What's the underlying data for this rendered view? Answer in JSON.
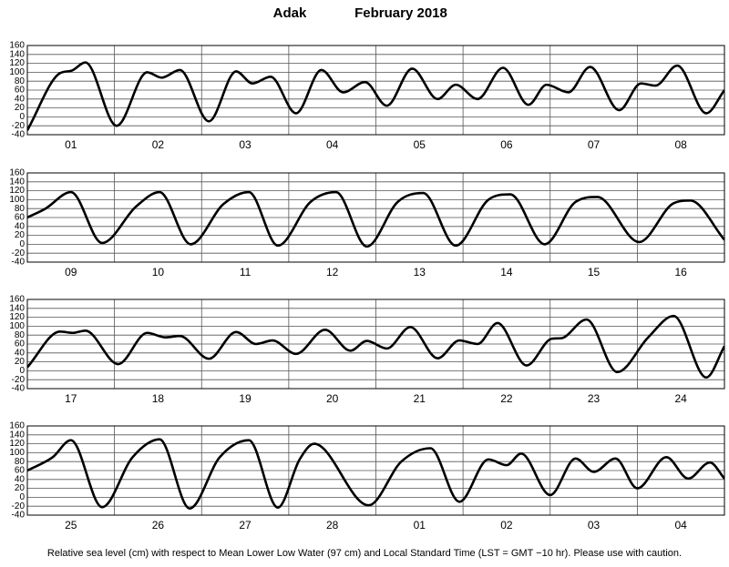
{
  "header": {
    "station": "Adak",
    "date": "February 2018"
  },
  "footnote": "Relative sea level (cm) with respect to Mean Lower Low Water (97 cm) and Local Standard Time (LST = GMT −10 hr). Please use with caution.",
  "chart_data": [
    {
      "type": "line",
      "categories": [
        "01",
        "02",
        "03",
        "04",
        "05",
        "06",
        "07",
        "08"
      ],
      "xlim": [
        0,
        192
      ],
      "ylim": [
        -40,
        160
      ],
      "yticks": [
        -40,
        -20,
        0,
        20,
        40,
        60,
        80,
        100,
        120,
        140,
        160
      ],
      "grid": true,
      "color": "#000000",
      "x": [
        0,
        9,
        12,
        16,
        24.6,
        33,
        37,
        42,
        50,
        57.5,
        62,
        67,
        74,
        81,
        87,
        93,
        99,
        106,
        113,
        118,
        124,
        131,
        138,
        143,
        149,
        155,
        163,
        169,
        173,
        179,
        187,
        192
      ],
      "values": [
        -30,
        98,
        103,
        122,
        -20,
        100,
        88,
        105,
        -10,
        102,
        75,
        90,
        8,
        105,
        55,
        78,
        25,
        108,
        40,
        72,
        40,
        110,
        27,
        72,
        55,
        112,
        15,
        75,
        70,
        115,
        8,
        60
      ]
    },
    {
      "type": "line",
      "categories": [
        "09",
        "10",
        "11",
        "12",
        "13",
        "14",
        "15",
        "16"
      ],
      "xlim": [
        0,
        192
      ],
      "ylim": [
        -40,
        160
      ],
      "yticks": [
        -40,
        -20,
        0,
        20,
        40,
        60,
        80,
        100,
        120,
        140,
        160
      ],
      "grid": true,
      "color": "#000000",
      "x": [
        0,
        5,
        12,
        20.6,
        30,
        36.4,
        45,
        54,
        61,
        69,
        78,
        85,
        93.5,
        102,
        109,
        118,
        127,
        133,
        142.5,
        151,
        157,
        168.5,
        178,
        182.6,
        192
      ],
      "values": [
        60,
        80,
        117,
        3,
        85,
        117,
        0,
        90,
        117,
        -3,
        95,
        117,
        -5,
        95,
        115,
        -3,
        100,
        112,
        0,
        95,
        106,
        5,
        92,
        98,
        10
      ]
    },
    {
      "type": "line",
      "categories": [
        "17",
        "18",
        "19",
        "20",
        "21",
        "22",
        "23",
        "24"
      ],
      "xlim": [
        0,
        192
      ],
      "ylim": [
        -40,
        160
      ],
      "yticks": [
        -40,
        -20,
        0,
        20,
        40,
        60,
        80,
        100,
        120,
        140,
        160
      ],
      "grid": true,
      "color": "#000000",
      "x": [
        0,
        9,
        12.5,
        16,
        25,
        33,
        38,
        42,
        50,
        57.5,
        63,
        67.5,
        74,
        82,
        89,
        93.5,
        99,
        105.5,
        113,
        119,
        124,
        129.5,
        137.5,
        144.5,
        147,
        154,
        162.5,
        171,
        178,
        187,
        192
      ],
      "values": [
        8,
        88,
        85,
        90,
        15,
        85,
        75,
        78,
        27,
        87,
        60,
        68,
        38,
        92,
        45,
        67,
        50,
        98,
        28,
        68,
        60,
        107,
        12,
        72,
        73,
        115,
        -3,
        75,
        123,
        -15,
        55
      ]
    },
    {
      "type": "line",
      "categories": [
        "25",
        "26",
        "27",
        "28",
        "01",
        "02",
        "03",
        "04"
      ],
      "xlim": [
        0,
        192
      ],
      "ylim": [
        -40,
        160
      ],
      "yticks": [
        -40,
        -20,
        0,
        20,
        40,
        60,
        80,
        100,
        120,
        140,
        160
      ],
      "grid": true,
      "color": "#000000",
      "x": [
        0,
        7,
        12,
        20.6,
        29,
        36.4,
        44.7,
        53,
        61,
        69,
        75,
        79,
        94,
        103,
        111,
        119,
        127,
        132,
        136,
        144,
        151,
        156,
        162,
        168,
        176,
        182,
        188,
        192
      ],
      "values": [
        60,
        90,
        128,
        -22,
        90,
        130,
        -25,
        90,
        128,
        -23,
        85,
        120,
        -18,
        80,
        110,
        -10,
        85,
        72,
        98,
        5,
        87,
        57,
        87,
        20,
        90,
        42,
        78,
        42
      ]
    }
  ]
}
